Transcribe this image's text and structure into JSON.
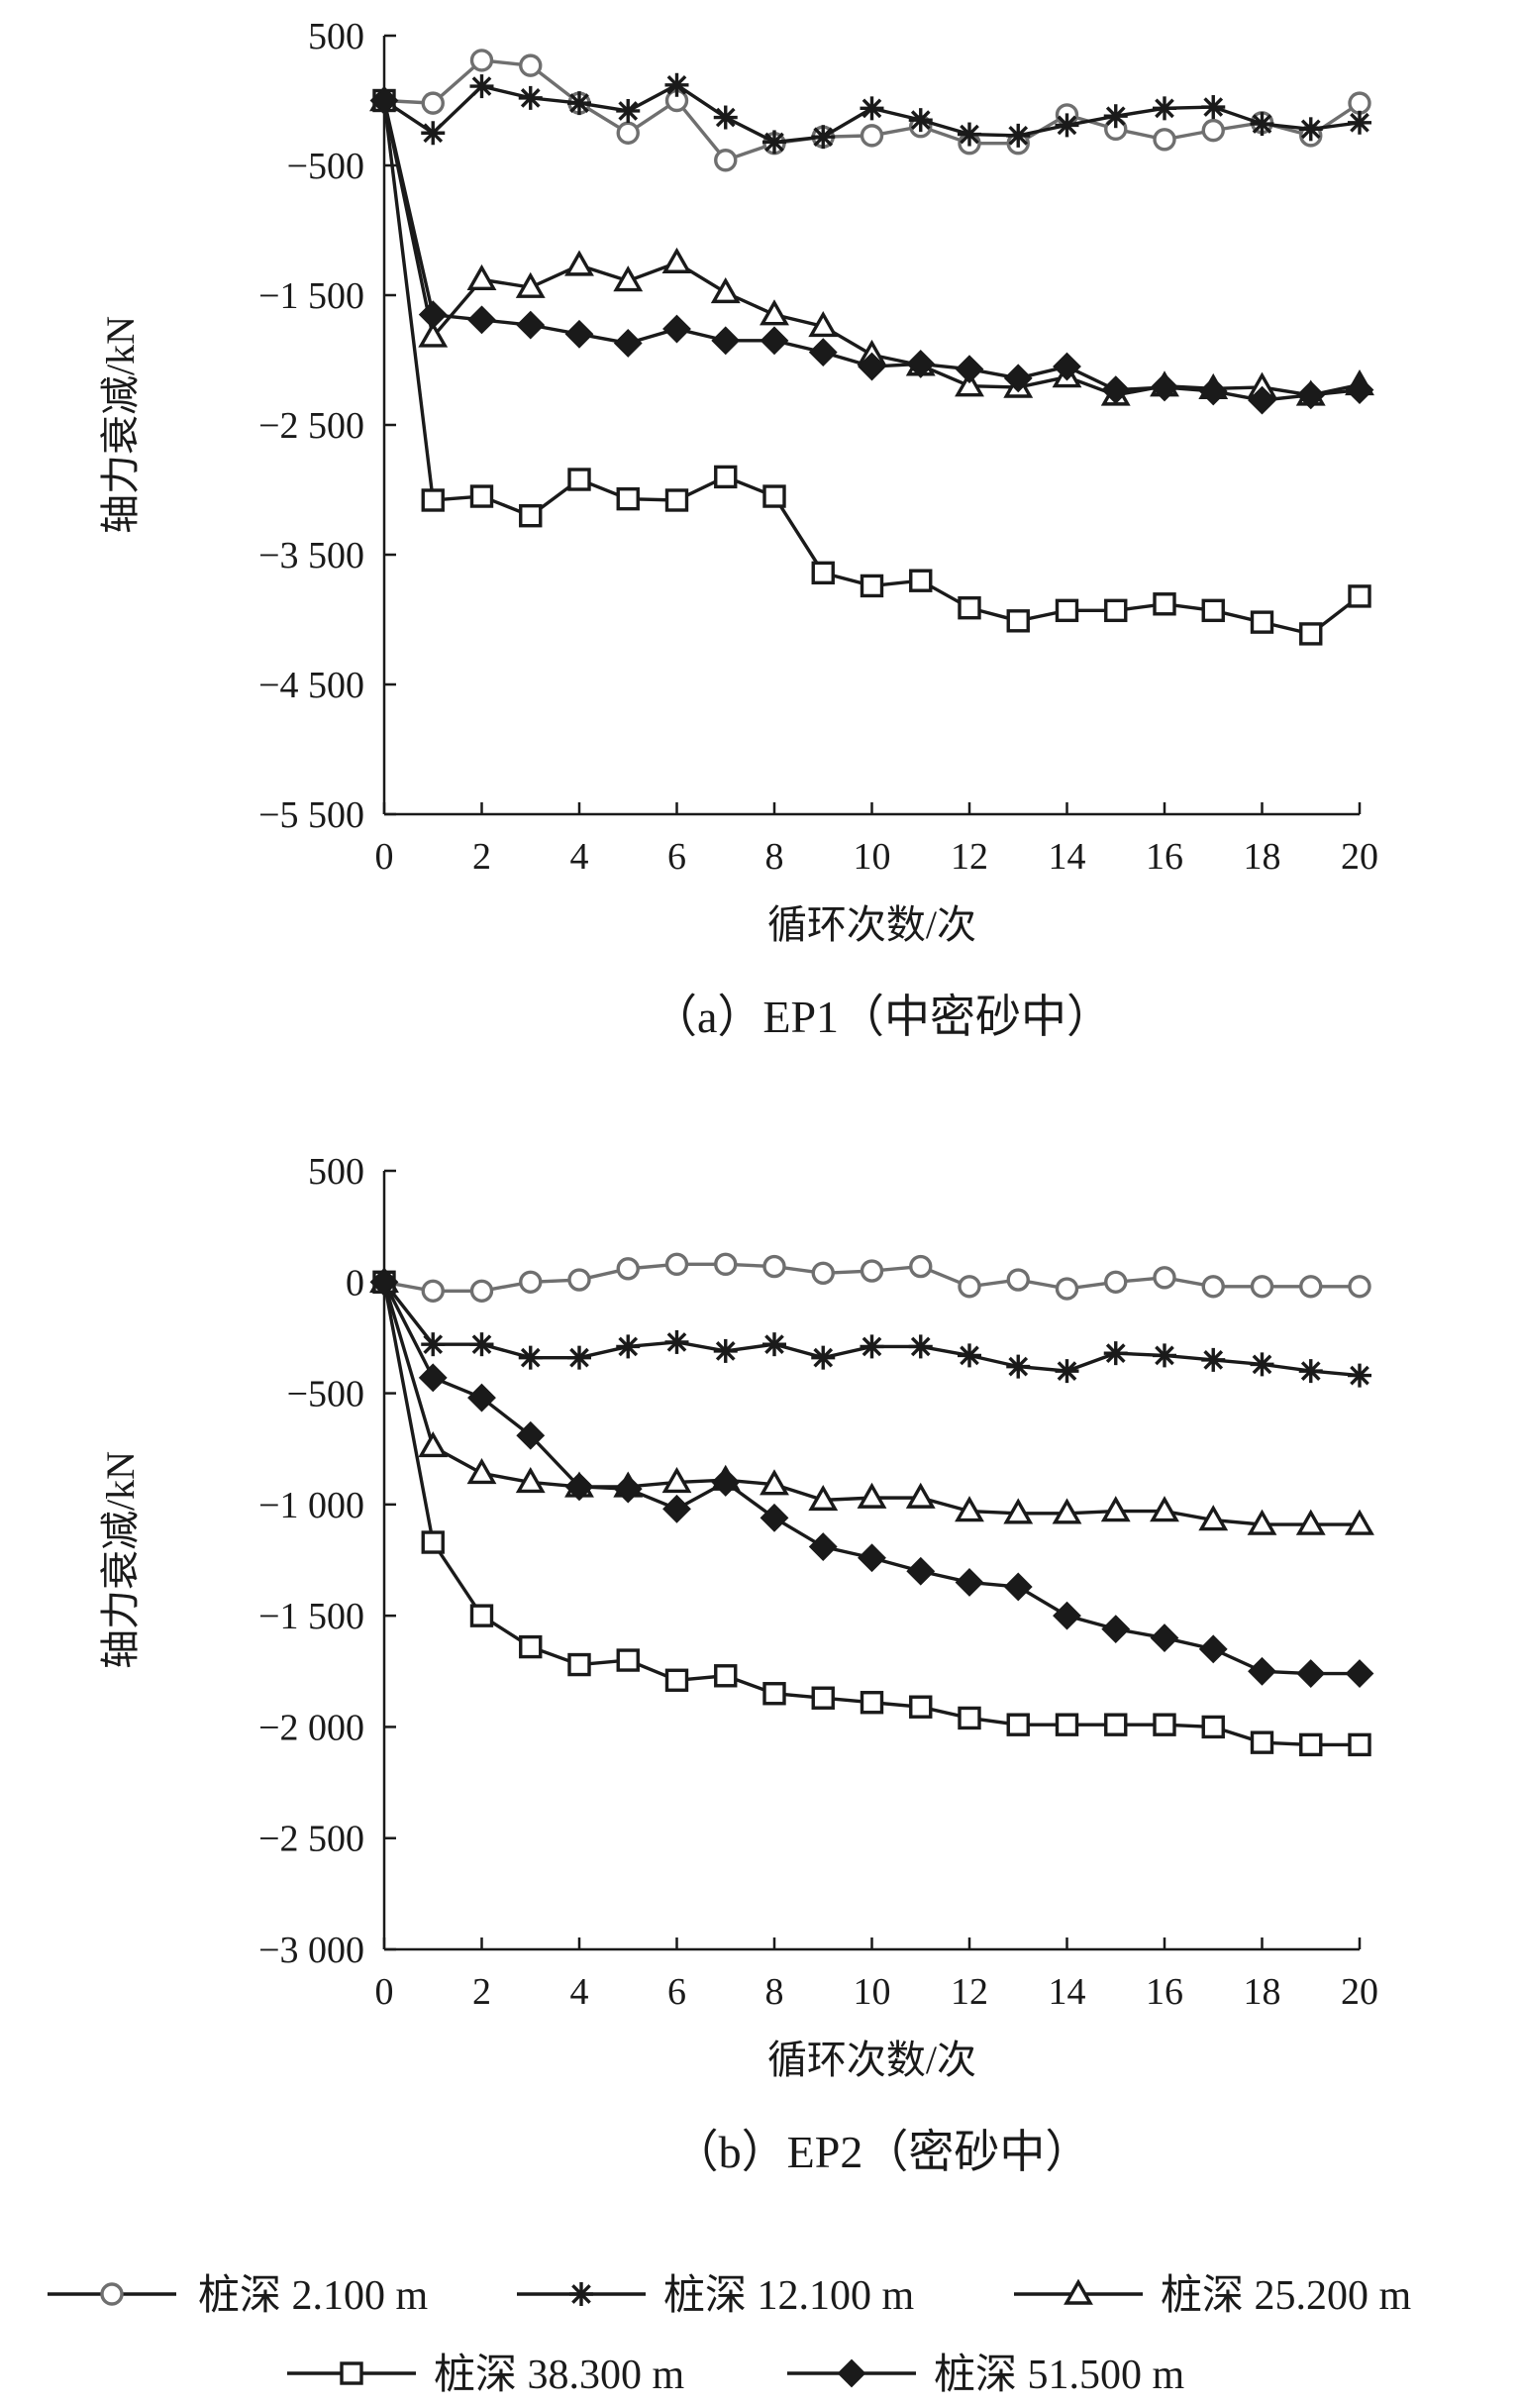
{
  "legend": [
    {
      "name": "桩深 2.100 m",
      "marker": "circle-open",
      "color": "#6f6f6f"
    },
    {
      "name": "桩深 12.100 m",
      "marker": "star",
      "color": "#1a1a1a"
    },
    {
      "name": "桩深 25.200 m",
      "marker": "triangle-open",
      "color": "#1a1a1a"
    },
    {
      "name": "桩深 38.300 m",
      "marker": "square-open",
      "color": "#1a1a1a"
    },
    {
      "name": "桩深 51.500 m",
      "marker": "diamond-filled",
      "color": "#1a1a1a"
    }
  ],
  "chart_data": [
    {
      "type": "line",
      "caption": "（a）EP1（中密砂中）",
      "xlabel": "循环次数/次",
      "ylabel": "轴力衰减/kN",
      "xlim": [
        0,
        20
      ],
      "ylim": [
        -5500,
        500
      ],
      "x_ticks": [
        0,
        2,
        4,
        6,
        8,
        10,
        12,
        14,
        16,
        18,
        20
      ],
      "y_ticks": [
        500,
        -500,
        -1500,
        -2500,
        -3500,
        -4500,
        -5500
      ],
      "y_tick_labels": [
        "500",
        "−500",
        "−1 500",
        "−2 500",
        "−3 500",
        "−4 500",
        "−5 500"
      ],
      "x": [
        0,
        1,
        2,
        3,
        4,
        5,
        6,
        7,
        8,
        9,
        10,
        11,
        12,
        13,
        14,
        15,
        16,
        17,
        18,
        19,
        20
      ],
      "series": [
        {
          "name": "桩深 2.100 m",
          "values": [
            0,
            -20,
            310,
            270,
            -20,
            -250,
            0,
            -460,
            -330,
            -280,
            -270,
            -200,
            -330,
            -330,
            -110,
            -220,
            -300,
            -230,
            -170,
            -270,
            -20
          ]
        },
        {
          "name": "桩深 12.100 m",
          "values": [
            0,
            -250,
            110,
            20,
            -20,
            -80,
            120,
            -130,
            -320,
            -280,
            -60,
            -150,
            -260,
            -270,
            -190,
            -120,
            -60,
            -50,
            -180,
            -220,
            -170
          ]
        },
        {
          "name": "桩深 25.200 m",
          "values": [
            0,
            -1820,
            -1380,
            -1440,
            -1270,
            -1390,
            -1250,
            -1480,
            -1650,
            -1740,
            -1960,
            -2040,
            -2200,
            -2210,
            -2130,
            -2270,
            -2200,
            -2220,
            -2210,
            -2270,
            -2190
          ]
        },
        {
          "name": "桩深 38.300 m",
          "values": [
            0,
            -3080,
            -3050,
            -3200,
            -2920,
            -3070,
            -3080,
            -2900,
            -3050,
            -3640,
            -3740,
            -3700,
            -3910,
            -4010,
            -3930,
            -3930,
            -3880,
            -3930,
            -4020,
            -4110,
            -3820
          ]
        },
        {
          "name": "桩深 51.500 m",
          "values": [
            0,
            -1650,
            -1690,
            -1730,
            -1800,
            -1870,
            -1760,
            -1850,
            -1850,
            -1940,
            -2050,
            -2030,
            -2070,
            -2140,
            -2050,
            -2230,
            -2210,
            -2240,
            -2310,
            -2270,
            -2230
          ]
        }
      ]
    },
    {
      "type": "line",
      "caption": "（b）EP2（密砂中）",
      "xlabel": "循环次数/次",
      "ylabel": "轴力衰减/kN",
      "xlim": [
        0,
        20
      ],
      "ylim": [
        -3000,
        500
      ],
      "x_ticks": [
        0,
        2,
        4,
        6,
        8,
        10,
        12,
        14,
        16,
        18,
        20
      ],
      "y_ticks": [
        500,
        0,
        -500,
        -1000,
        -1500,
        -2000,
        -2500,
        -3000
      ],
      "y_tick_labels": [
        "500",
        "0",
        "−500",
        "−1 000",
        "−1 500",
        "−2 000",
        "−2 500",
        "−3 000"
      ],
      "x": [
        0,
        1,
        2,
        3,
        4,
        5,
        6,
        7,
        8,
        9,
        10,
        11,
        12,
        13,
        14,
        15,
        16,
        17,
        18,
        19,
        20
      ],
      "series": [
        {
          "name": "桩深 2.100 m",
          "values": [
            0,
            -40,
            -40,
            0,
            10,
            60,
            80,
            80,
            70,
            40,
            50,
            70,
            -20,
            10,
            -30,
            0,
            20,
            -20,
            -20,
            -20,
            -20
          ]
        },
        {
          "name": "桩深 12.100 m",
          "values": [
            0,
            -280,
            -280,
            -340,
            -340,
            -290,
            -270,
            -310,
            -280,
            -340,
            -290,
            -290,
            -330,
            -380,
            -400,
            -320,
            -330,
            -350,
            -370,
            -400,
            -420
          ]
        },
        {
          "name": "桩深 25.200 m",
          "values": [
            0,
            -740,
            -860,
            -900,
            -920,
            -920,
            -900,
            -890,
            -910,
            -980,
            -970,
            -970,
            -1030,
            -1040,
            -1040,
            -1030,
            -1030,
            -1070,
            -1090,
            -1090,
            -1090
          ]
        },
        {
          "name": "桩深 38.300 m",
          "values": [
            0,
            -1170,
            -1500,
            -1640,
            -1720,
            -1700,
            -1790,
            -1770,
            -1850,
            -1870,
            -1890,
            -1910,
            -1960,
            -1990,
            -1990,
            -1990,
            -1990,
            -2000,
            -2070,
            -2080,
            -2080
          ]
        },
        {
          "name": "桩深 51.500 m",
          "values": [
            0,
            -430,
            -520,
            -690,
            -920,
            -930,
            -1020,
            -900,
            -1060,
            -1190,
            -1240,
            -1300,
            -1350,
            -1370,
            -1500,
            -1560,
            -1600,
            -1650,
            -1750,
            -1760,
            -1760
          ]
        }
      ]
    }
  ]
}
